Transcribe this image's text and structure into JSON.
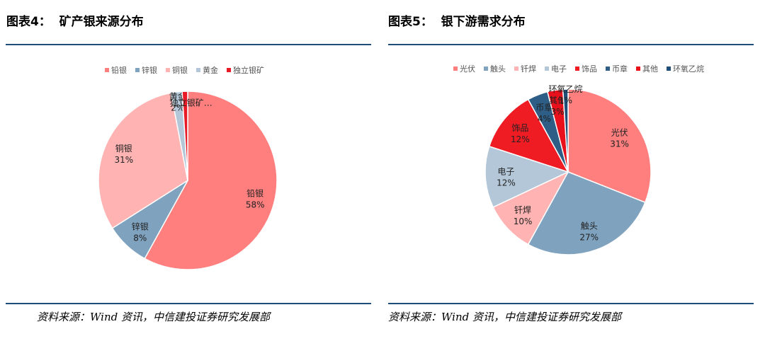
{
  "left_panel": {
    "title": "图表4：  矿产银来源分布",
    "source": "资料来源：Wind 资讯，中信建投证券研究发展部"
  },
  "right_panel": {
    "title": "图表5：  银下游需求分布",
    "source": "资料来源：Wind 资讯，中信建投证券研究发展部"
  },
  "chart_data": [
    {
      "type": "pie",
      "title": "",
      "legend_position": "top",
      "slices": [
        {
          "name": "铅银",
          "value": 58,
          "label": "58%",
          "color": "#ff7f7f"
        },
        {
          "name": "锌银",
          "value": 8,
          "label": "8%",
          "color": "#7fa2bf"
        },
        {
          "name": "铜银",
          "value": 31,
          "label": "31%",
          "color": "#ffb3b3"
        },
        {
          "name": "黄金",
          "value": 2,
          "label": "2%",
          "color": "#b4c7d8"
        },
        {
          "name": "独立银矿",
          "display_name": "独立银矿…",
          "value": 1,
          "label": "",
          "color": "#e81a26"
        }
      ]
    },
    {
      "type": "pie",
      "title": "",
      "legend_position": "top",
      "slices": [
        {
          "name": "光伏",
          "value": 31,
          "label": "31%",
          "color": "#ff7f7f"
        },
        {
          "name": "触头",
          "value": 27,
          "label": "27%",
          "color": "#7fa2bf"
        },
        {
          "name": "钎焊",
          "value": 10,
          "label": "10%",
          "color": "#ffb3b3"
        },
        {
          "name": "电子",
          "value": 12,
          "label": "12%",
          "color": "#b4c7d8"
        },
        {
          "name": "饰品",
          "value": 12,
          "label": "12%",
          "color": "#ef1c24"
        },
        {
          "name": "币章",
          "value": 4,
          "label": "4%",
          "color": "#2e5e86"
        },
        {
          "name": "其他",
          "value": 3,
          "label": "3%",
          "color": "#e8101a"
        },
        {
          "name": "环氧乙烷",
          "value": 1,
          "label": "1%",
          "color": "#1f4e79"
        }
      ]
    }
  ]
}
